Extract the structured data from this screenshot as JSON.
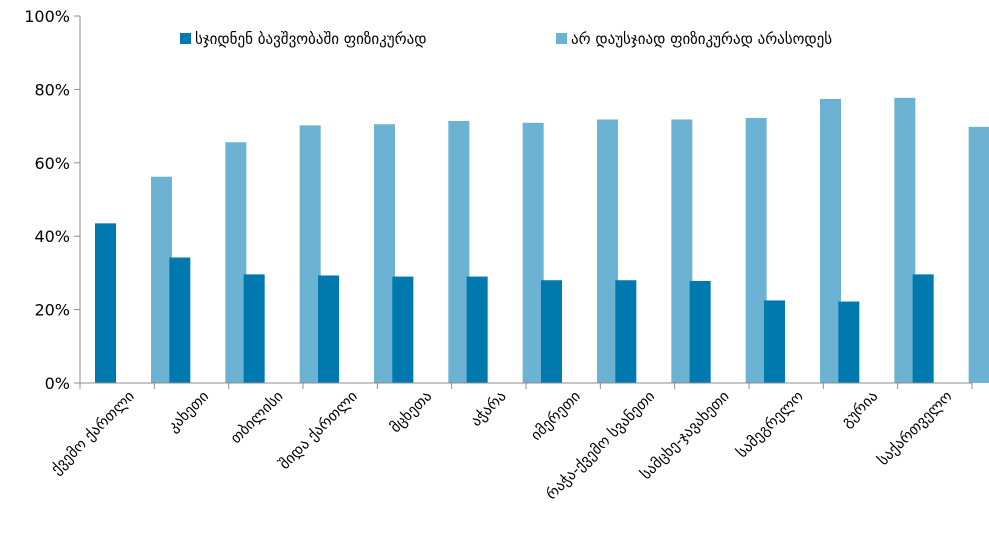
{
  "chart_data": {
    "type": "bar",
    "categories": [
      "ქვემო ქართლი",
      "კახეთი",
      "თბილისი",
      "შიდა ქართლი",
      "მცხეთა",
      "აჭარა",
      "იმერეთი",
      "რაჭა-ქვემო სვანეთი",
      "სამცხე-ჯავახეთი",
      "სამეგრელო",
      "გურია",
      "საქართველო"
    ],
    "series": [
      {
        "name": "სჯიდნენ ბავშვობაში ფიზიკურად",
        "color": "#0079AE",
        "values": [
          43.5,
          34.2,
          29.6,
          29.3,
          29.0,
          29.0,
          28.0,
          28.0,
          27.8,
          22.5,
          22.2,
          29.6
        ]
      },
      {
        "name": "არ დაუსჯიად ფიზიკურად არასოდეს",
        "color": "#6BB2D3",
        "values": [
          56.2,
          65.6,
          70.2,
          70.5,
          71.4,
          70.9,
          71.8,
          71.8,
          72.2,
          77.4,
          77.7,
          69.8
        ]
      }
    ],
    "ylim": [
      0,
      100
    ],
    "y_ticks": [
      "0%",
      "20%",
      "40%",
      "60%",
      "80%",
      "100%"
    ],
    "grid": false,
    "legend_position": "top"
  }
}
